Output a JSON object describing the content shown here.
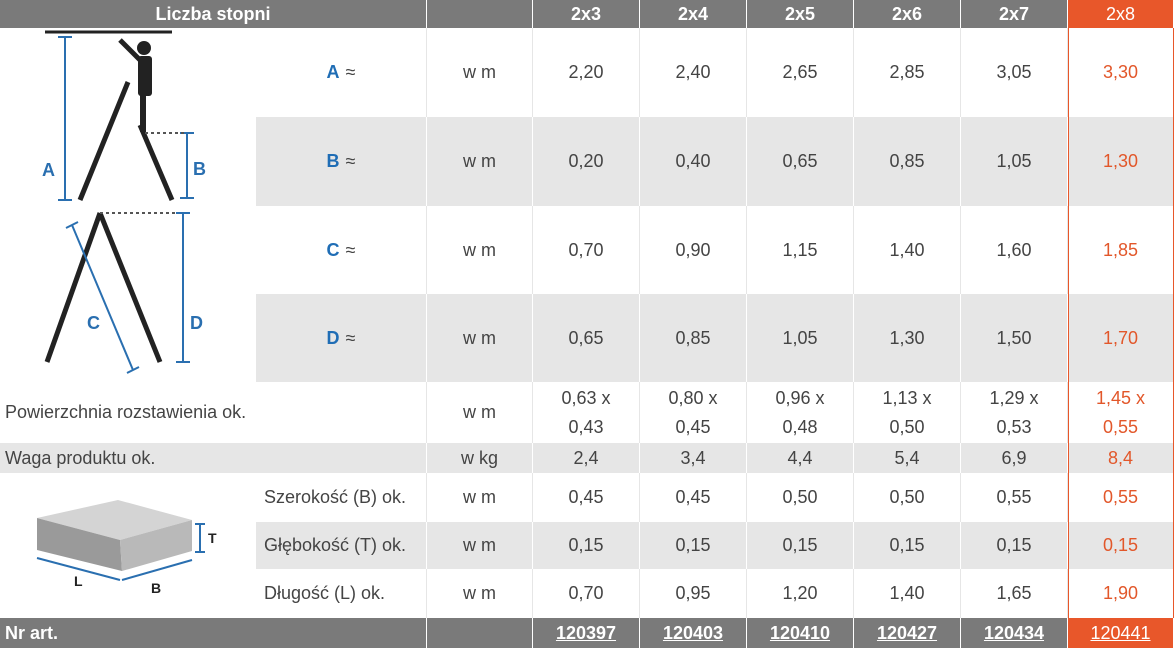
{
  "header": {
    "label": "Liczba stopni",
    "columns": [
      "2x3",
      "2x4",
      "2x5",
      "2x6",
      "2x7",
      "2x8"
    ]
  },
  "dimensions": [
    {
      "letter": "A",
      "symbol": "≈",
      "unit": "w m",
      "values": [
        "2,20",
        "2,40",
        "2,65",
        "2,85",
        "3,05",
        "3,30"
      ]
    },
    {
      "letter": "B",
      "symbol": "≈",
      "unit": "w m",
      "values": [
        "0,20",
        "0,40",
        "0,65",
        "0,85",
        "1,05",
        "1,30"
      ]
    },
    {
      "letter": "C",
      "symbol": "≈",
      "unit": "w m",
      "values": [
        "0,70",
        "0,90",
        "1,15",
        "1,40",
        "1,60",
        "1,85"
      ]
    },
    {
      "letter": "D",
      "symbol": "≈",
      "unit": "w m",
      "values": [
        "0,65",
        "0,85",
        "1,05",
        "1,30",
        "1,50",
        "1,70"
      ]
    }
  ],
  "area": {
    "label": "Powierzchnia rozstawienia ok.",
    "unit": "w m",
    "values": [
      [
        "0,63 x",
        "0,43"
      ],
      [
        "0,80 x",
        "0,45"
      ],
      [
        "0,96 x",
        "0,48"
      ],
      [
        "1,13 x",
        "0,50"
      ],
      [
        "1,29 x",
        "0,53"
      ],
      [
        "1,45 x",
        "0,55"
      ]
    ]
  },
  "weight": {
    "label": "Waga produktu ok.",
    "unit": "w kg",
    "values": [
      "2,4",
      "3,4",
      "4,4",
      "5,4",
      "6,9",
      "8,4"
    ]
  },
  "package": [
    {
      "label": "Szerokość (B) ok.",
      "unit": "w m",
      "values": [
        "0,45",
        "0,45",
        "0,50",
        "0,50",
        "0,55",
        "0,55"
      ]
    },
    {
      "label": "Głębokość (T) ok.",
      "unit": "w m",
      "values": [
        "0,15",
        "0,15",
        "0,15",
        "0,15",
        "0,15",
        "0,15"
      ]
    },
    {
      "label": "Długość (L) ok.",
      "unit": "w m",
      "values": [
        "0,70",
        "0,95",
        "1,20",
        "1,40",
        "1,65",
        "1,90"
      ]
    }
  ],
  "article": {
    "label": "Nr art.",
    "values": [
      "120397",
      "120403",
      "120410",
      "120427",
      "120434",
      "120441"
    ]
  },
  "ladder_labels": [
    "A",
    "B",
    "C",
    "D"
  ],
  "box_labels": [
    "T",
    "L",
    "B"
  ]
}
